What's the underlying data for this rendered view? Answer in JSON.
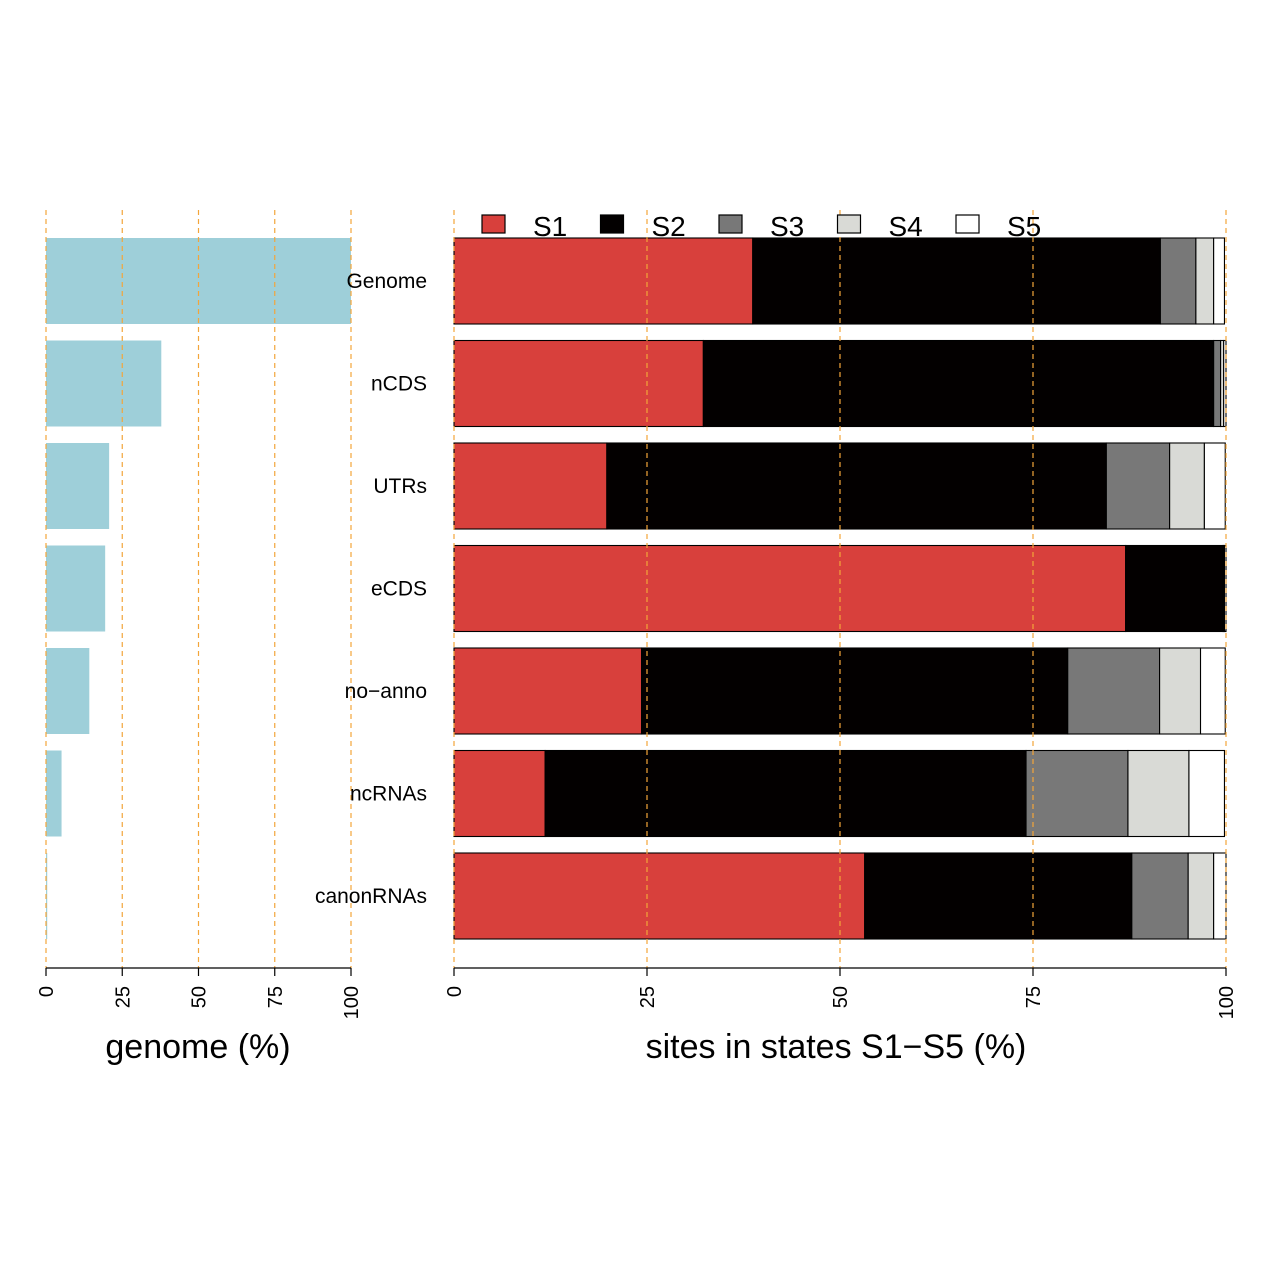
{
  "chart_data": [
    {
      "type": "bar",
      "orientation": "horizontal",
      "categories": [
        "Genome",
        "nCDS",
        "UTRs",
        "eCDS",
        "no−anno",
        "ncRNAs",
        "canonRNAs"
      ],
      "values": [
        100,
        37.8,
        20.7,
        19.4,
        14.2,
        5.1,
        0.4
      ],
      "xlabel": "genome (%)",
      "xlim": [
        0,
        100
      ],
      "xticks": [
        "0",
        "25",
        "50",
        "75",
        "100"
      ],
      "tick_values": [
        0,
        25,
        50,
        75,
        100
      ],
      "grid": "vertical dashed",
      "bar_color": "#9ecfd9",
      "grid_color": "#f3a53a"
    },
    {
      "type": "bar",
      "orientation": "horizontal",
      "stacked": true,
      "categories": [
        "Genome",
        "nCDS",
        "UTRs",
        "eCDS",
        "no−anno",
        "ncRNAs",
        "canonRNAs"
      ],
      "series": [
        {
          "name": "S1",
          "color": "#d8403c",
          "values": [
            38.7,
            32.3,
            19.8,
            87.0,
            24.3,
            11.8,
            53.2
          ]
        },
        {
          "name": "S2",
          "color": "#030000",
          "values": [
            52.8,
            66.1,
            64.7,
            12.6,
            55.2,
            62.3,
            34.6
          ]
        },
        {
          "name": "S3",
          "color": "#787878",
          "values": [
            4.6,
            0.9,
            8.2,
            0.1,
            11.9,
            13.2,
            7.3
          ]
        },
        {
          "name": "S4",
          "color": "#d9dad6",
          "values": [
            2.3,
            0.4,
            4.5,
            0.1,
            5.3,
            7.9,
            3.3
          ]
        },
        {
          "name": "S5",
          "color": "#ffffff",
          "values": [
            1.4,
            0.3,
            2.7,
            0.2,
            3.2,
            4.6,
            1.6
          ]
        }
      ],
      "xlabel": "sites in states S1−S5 (%)",
      "xlim": [
        0,
        100
      ],
      "xticks": [
        "0",
        "25",
        "50",
        "75",
        "100"
      ],
      "tick_values": [
        0,
        25,
        50,
        75,
        100
      ],
      "grid": "vertical dashed",
      "legend": "top",
      "grid_color": "#f3a53a"
    }
  ]
}
